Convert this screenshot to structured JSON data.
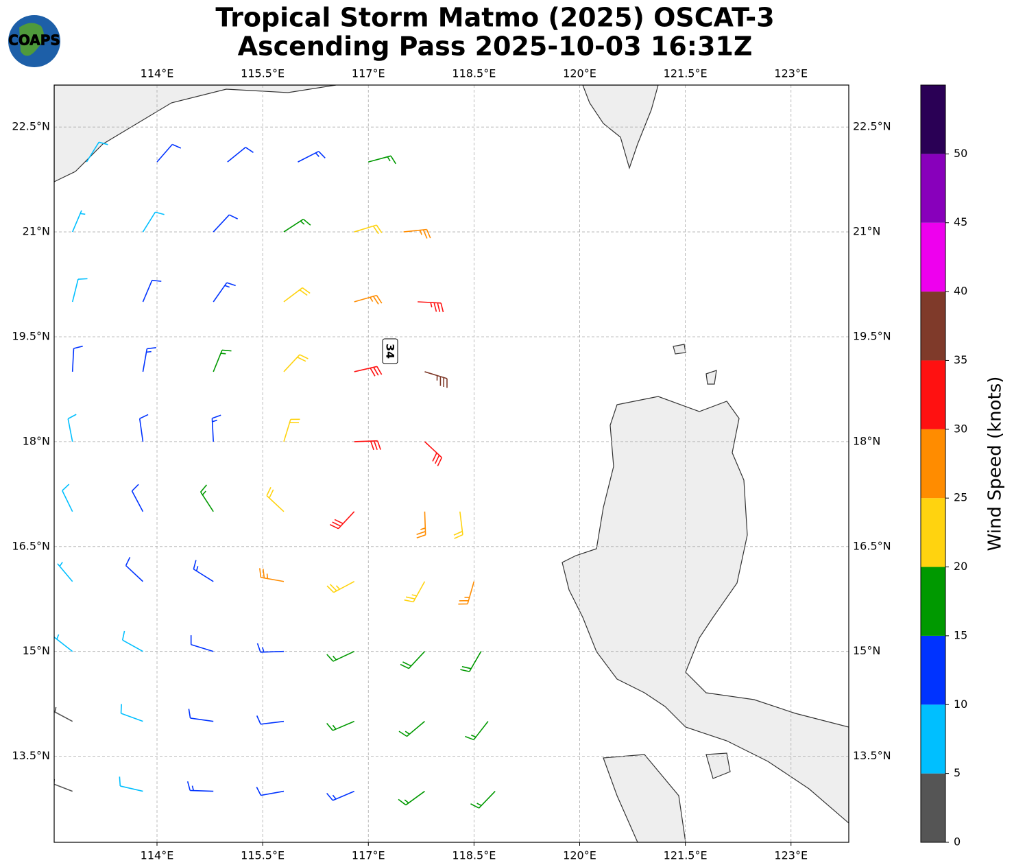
{
  "chart_data": {
    "type": "barb",
    "title": "Tropical Storm Matmo (2025) OSCAT-3",
    "subtitle": "Ascending Pass 2025-10-03 16:31Z",
    "logo": "COAPS",
    "annotation": "34",
    "xlim": [
      112.54,
      123.82
    ],
    "ylim": [
      12.27,
      23.1
    ],
    "xticks": [
      {
        "value": 114,
        "label": "114°E"
      },
      {
        "value": 115.5,
        "label": "115.5°E"
      },
      {
        "value": 117,
        "label": "117°E"
      },
      {
        "value": 118.5,
        "label": "118.5°E"
      },
      {
        "value": 120,
        "label": "120°E"
      },
      {
        "value": 121.5,
        "label": "121.5°E"
      },
      {
        "value": 123,
        "label": "123°E"
      }
    ],
    "yticks": [
      {
        "value": 13.5,
        "label": "13.5°N"
      },
      {
        "value": 15,
        "label": "15°N"
      },
      {
        "value": 16.5,
        "label": "16.5°N"
      },
      {
        "value": 18,
        "label": "18°N"
      },
      {
        "value": 19.5,
        "label": "19.5°N"
      },
      {
        "value": 21,
        "label": "21°N"
      },
      {
        "value": 22.5,
        "label": "22.5°N"
      }
    ],
    "grid": true,
    "lon": [
      113.0,
      114.0,
      115.0,
      116.0,
      117.0,
      112.8,
      113.8,
      114.8,
      115.8,
      116.8,
      117.5,
      112.8,
      113.8,
      114.8,
      115.8,
      116.8,
      117.7,
      112.8,
      113.8,
      114.8,
      115.8,
      116.8,
      117.8,
      112.8,
      113.8,
      114.8,
      115.8,
      116.8,
      117.8,
      112.8,
      113.8,
      114.8,
      115.8,
      116.8,
      117.8,
      118.3,
      112.8,
      113.8,
      114.8,
      115.8,
      116.8,
      117.8,
      118.5,
      112.8,
      113.8,
      114.8,
      115.8,
      116.8,
      117.8,
      118.6,
      112.8,
      113.8,
      114.8,
      115.8,
      116.8,
      117.8,
      118.7,
      112.8,
      113.8,
      114.8,
      115.8,
      116.8,
      117.8,
      118.8
    ],
    "lat": [
      22,
      22,
      22,
      22,
      22,
      21,
      21,
      21,
      21,
      21,
      21,
      20,
      20,
      20,
      20,
      20,
      20,
      19,
      19,
      19,
      19,
      19,
      19,
      18,
      18,
      18,
      18,
      18,
      18,
      17,
      17,
      17,
      17,
      17,
      17,
      17,
      16,
      16,
      16,
      16,
      16,
      16,
      16,
      15,
      15,
      15,
      15,
      15,
      15,
      15,
      14,
      14,
      14,
      14,
      14,
      14,
      14,
      13,
      13,
      13,
      13,
      13,
      13,
      13
    ],
    "speed": [
      8,
      12,
      12,
      13,
      15,
      7,
      9,
      12,
      17,
      22,
      27,
      8,
      12,
      14,
      22,
      27,
      33,
      12,
      13,
      17,
      22,
      31,
      36,
      8,
      12,
      14,
      22,
      32,
      30,
      8,
      12,
      16,
      22,
      30,
      27,
      22,
      7,
      12,
      14,
      27,
      24,
      24,
      27,
      7,
      9,
      12,
      13,
      17,
      18,
      18,
      4,
      8,
      12,
      12,
      17,
      17,
      17,
      4,
      8,
      13,
      12,
      13,
      17,
      17
    ],
    "direction": [
      32,
      41,
      51,
      63,
      75,
      23,
      32,
      43,
      57,
      73,
      84,
      14,
      23,
      35,
      53,
      74,
      93,
      3,
      10,
      22,
      43,
      77,
      107,
      349,
      352,
      357,
      17,
      88,
      133,
      334,
      332,
      327,
      313,
      223,
      178,
      173,
      320,
      313,
      302,
      280,
      242,
      209,
      196,
      308,
      299,
      287,
      268,
      245,
      223,
      210,
      298,
      290,
      278,
      263,
      247,
      230,
      218,
      291,
      283,
      272,
      260,
      247,
      234,
      224
    ],
    "colorbar": {
      "label": "Wind Speed (knots)",
      "lim": [
        0,
        55
      ],
      "levels": [
        0,
        5,
        10,
        15,
        20,
        25,
        30,
        35,
        40,
        45,
        50,
        55
      ],
      "colors": [
        "#555555",
        "#00bfff",
        "#0033ff",
        "#009900",
        "#ffd30f",
        "#ff8c00",
        "#ff1111",
        "#7f3a2a",
        "#ee00ee",
        "#8800bb",
        "#2a0055"
      ],
      "ticks": [
        0,
        5,
        10,
        15,
        20,
        25,
        30,
        35,
        40,
        45,
        50
      ]
    }
  }
}
